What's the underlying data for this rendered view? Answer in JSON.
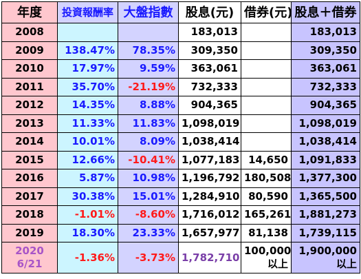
{
  "headers": [
    "年度",
    "投資報酬率",
    "大盤指數",
    "股息(元)",
    "借券(元)",
    "股息＋借券"
  ],
  "colors": {
    "year_bg": "#ffc7ce",
    "return_bg": "#ccf5ff",
    "index_bg": "#d3d3ff",
    "total_bg": "#c8c4ff",
    "positive": "#1a1aff",
    "negative": "#ff1a1a",
    "last_year": "#a855c7",
    "last_dividend": "#7a3fa8"
  },
  "rows": [
    {
      "year": "2008",
      "return": "",
      "index": "",
      "dividend": "183,013",
      "lending": "",
      "total": "183,013",
      "return_sign": "none",
      "index_sign": "none"
    },
    {
      "year": "2009",
      "return": "138.47%",
      "index": "78.35%",
      "dividend": "309,350",
      "lending": "",
      "total": "309,350",
      "return_sign": "pos",
      "index_sign": "pos"
    },
    {
      "year": "2010",
      "return": "17.97%",
      "index": "9.59%",
      "dividend": "363,061",
      "lending": "",
      "total": "363,061",
      "return_sign": "pos",
      "index_sign": "pos"
    },
    {
      "year": "2011",
      "return": "35.70%",
      "index": "-21.19%",
      "dividend": "732,333",
      "lending": "",
      "total": "732,333",
      "return_sign": "pos",
      "index_sign": "neg"
    },
    {
      "year": "2012",
      "return": "14.35%",
      "index": "8.88%",
      "dividend": "904,365",
      "lending": "",
      "total": "904,365",
      "return_sign": "pos",
      "index_sign": "pos"
    },
    {
      "year": "2013",
      "return": "11.33%",
      "index": "11.83%",
      "dividend": "1,098,019",
      "lending": "",
      "total": "1,098,019",
      "return_sign": "pos",
      "index_sign": "pos"
    },
    {
      "year": "2014",
      "return": "10.01%",
      "index": "8.09%",
      "dividend": "1,038,414",
      "lending": "",
      "total": "1,038,414",
      "return_sign": "pos",
      "index_sign": "pos"
    },
    {
      "year": "2015",
      "return": "12.66%",
      "index": "-10.41%",
      "dividend": "1,077,183",
      "lending": "14,650",
      "total": "1,091,833",
      "return_sign": "pos",
      "index_sign": "neg"
    },
    {
      "year": "2016",
      "return": "5.87%",
      "index": "10.98%",
      "dividend": "1,196,792",
      "lending": "180,508",
      "total": "1,377,300",
      "return_sign": "pos",
      "index_sign": "pos"
    },
    {
      "year": "2017",
      "return": "30.38%",
      "index": "15.01%",
      "dividend": "1,284,910",
      "lending": "80,590",
      "total": "1,365,500",
      "return_sign": "pos",
      "index_sign": "pos"
    },
    {
      "year": "2018",
      "return": "-1.01%",
      "index": "-8.60%",
      "dividend": "1,716,012",
      "lending": "165,261",
      "total": "1,881,273",
      "return_sign": "neg",
      "index_sign": "neg"
    },
    {
      "year": "2019",
      "return": "18.30%",
      "index": "23.33%",
      "dividend": "1,657,977",
      "lending": "81,138",
      "total": "1,739,115",
      "return_sign": "pos",
      "index_sign": "pos"
    }
  ],
  "last_row": {
    "year_line1": "2020",
    "year_line2": "6/21",
    "return": "-1.36%",
    "index": "-3.73%",
    "dividend": "1,782,710",
    "lending_line1": "100,000",
    "lending_line2": "以上",
    "total_line1": "1,900,000",
    "total_line2": "以上"
  }
}
